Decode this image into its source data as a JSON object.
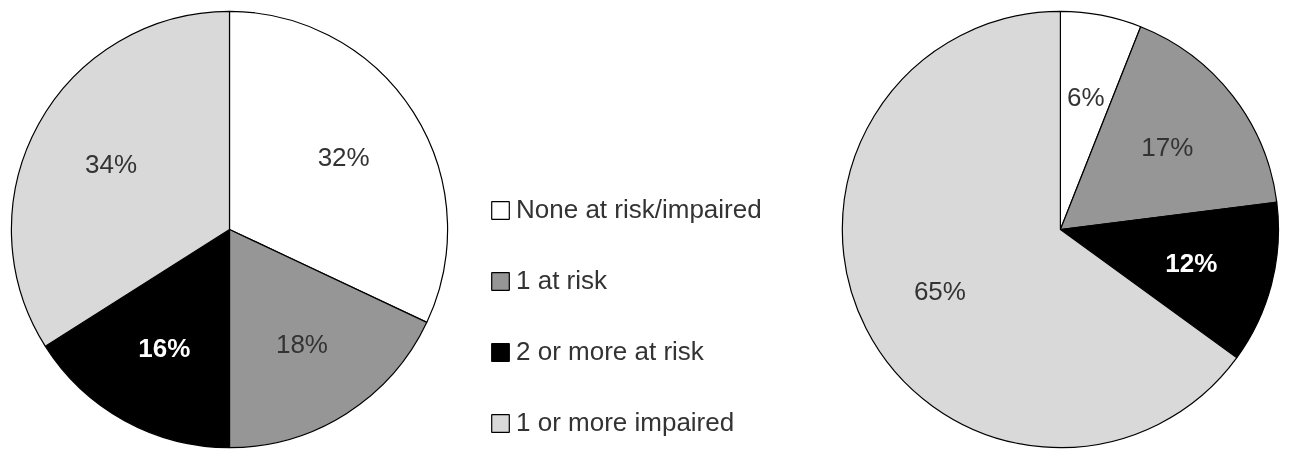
{
  "chart_data": [
    {
      "type": "pie",
      "categories": [
        "None at risk/impaired",
        "1 at risk",
        "2 or more at risk",
        "1 or more impaired"
      ],
      "values": [
        32,
        18,
        16,
        34
      ],
      "colors": [
        "#ffffff",
        "#969696",
        "#000000",
        "#d9d9d9"
      ],
      "value_labels": [
        "32%",
        "18%",
        "16%",
        "34%"
      ],
      "legend": "right"
    },
    {
      "type": "pie",
      "values": [
        6,
        17,
        12,
        65
      ],
      "colors": [
        "#ffffff",
        "#969696",
        "#000000",
        "#d9d9d9"
      ],
      "value_labels": [
        "6%",
        "17%",
        "12%",
        "65%"
      ]
    }
  ]
}
